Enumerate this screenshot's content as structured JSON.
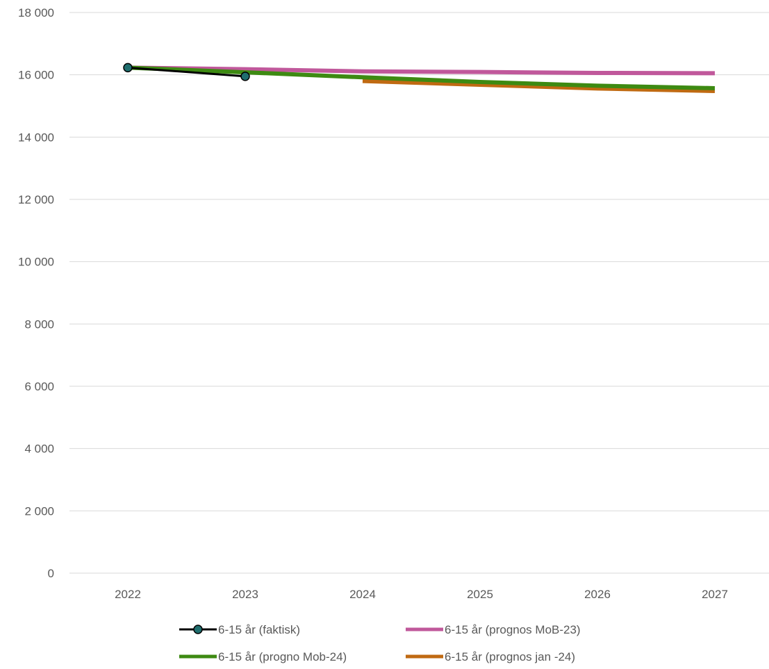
{
  "chart_data": {
    "type": "line",
    "title": "",
    "xlabel": "",
    "ylabel": "",
    "categories": [
      "2022",
      "2023",
      "2024",
      "2025",
      "2026",
      "2027"
    ],
    "ylim": [
      0,
      18000
    ],
    "yticks": [
      0,
      2000,
      4000,
      6000,
      8000,
      10000,
      12000,
      14000,
      16000,
      18000
    ],
    "ytick_labels": [
      "0",
      "2 000",
      "4 000",
      "6 000",
      "8 000",
      "10 000",
      "12 000",
      "14 000",
      "16 000",
      "18 000"
    ],
    "grid": true,
    "legend_position": "bottom",
    "series": [
      {
        "name": "6-15 år (faktisk)",
        "color": "#000000",
        "marker_color": "#1f6e6e",
        "markers": true,
        "values": [
          16230,
          15950,
          null,
          null,
          null,
          null
        ]
      },
      {
        "name": "6-15 år (prognos MoB-23)",
        "color": "#c0589b",
        "markers": false,
        "values": [
          16230,
          16180,
          16110,
          16090,
          16060,
          16050
        ]
      },
      {
        "name": "6-15 år (progno Mob-24)",
        "color": "#3d8a12",
        "markers": false,
        "values": [
          16230,
          16080,
          15920,
          15770,
          15650,
          15570
        ]
      },
      {
        "name": "6-15 år (prognos jan -24)",
        "color": "#c06a12",
        "markers": false,
        "values": [
          null,
          null,
          15800,
          15680,
          15560,
          15480
        ]
      }
    ]
  }
}
